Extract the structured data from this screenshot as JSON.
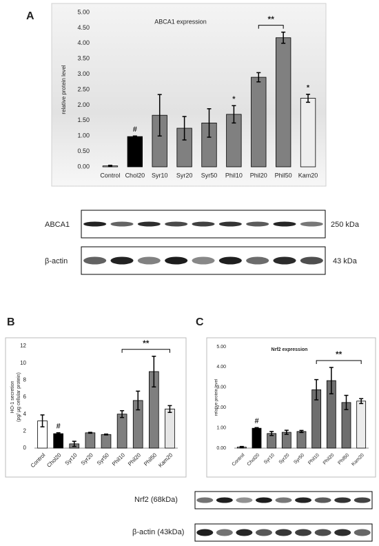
{
  "figure": {
    "panels": [
      "A",
      "B",
      "C"
    ],
    "blots_a": [
      {
        "label": "ABCA1",
        "size": "250 kDa"
      },
      {
        "label": "β-actin",
        "size": "43 kDa"
      }
    ],
    "blots_c": [
      {
        "label": "Nrf2 (68kDa)"
      },
      {
        "label": "β-actin (43kDa)"
      }
    ]
  },
  "chart_data": [
    {
      "type": "bar",
      "title": "ABCA1 expression",
      "y_label": [
        "relative protein level"
      ],
      "categories": [
        "Control",
        "Chol20",
        "Syr10",
        "Syr20",
        "Syr50",
        "Phil10",
        "Phil20",
        "Phil50",
        "Kam20"
      ],
      "values": [
        0.03,
        0.98,
        1.67,
        1.25,
        1.42,
        1.7,
        2.9,
        4.18,
        2.22
      ],
      "errors": [
        0.02,
        0.02,
        0.67,
        0.38,
        0.46,
        0.28,
        0.15,
        0.18,
        0.13
      ],
      "colors": [
        "#d9d9d9",
        "#000000",
        "#808080",
        "#808080",
        "#808080",
        "#808080",
        "#808080",
        "#808080",
        "#eeeeee"
      ],
      "ylim": [
        0,
        5
      ],
      "yticks": [
        {
          "value": 0,
          "label": "0.00"
        },
        {
          "value": 0.5,
          "label": "0.50"
        },
        {
          "value": 1,
          "label": "1.00"
        },
        {
          "value": 1.5,
          "label": "1.50"
        },
        {
          "value": 2,
          "label": "2.00"
        },
        {
          "value": 2.5,
          "label": "2.50"
        },
        {
          "value": 3,
          "label": "3.00"
        },
        {
          "value": 3.5,
          "label": "3.50"
        },
        {
          "value": 4,
          "label": "4.00"
        },
        {
          "value": 4.5,
          "label": "4.50"
        },
        {
          "value": 5,
          "label": "5.00"
        }
      ],
      "grid": false,
      "annotations": [
        {
          "text": "#",
          "category": "Chol20"
        },
        {
          "text": "*",
          "category": "Phil10"
        },
        {
          "text": "*",
          "category": "Kam20"
        }
      ],
      "brackets": [
        {
          "text": "**",
          "from": "Phil20",
          "to": "Phil50"
        }
      ]
    },
    {
      "type": "bar",
      "y_label": [
        "HO-1 secretion",
        "(pg/ µg cellular protein)"
      ],
      "categories": [
        "Control",
        "Chol20",
        "Syr10",
        "Syr20",
        "Syr50",
        "Phil10",
        "Phil20",
        "Phil50",
        "Kam20"
      ],
      "values": [
        3.2,
        1.7,
        0.5,
        1.8,
        1.6,
        4.0,
        5.6,
        9.0,
        4.6
      ],
      "errors": [
        0.7,
        0.1,
        0.3,
        0.05,
        0.05,
        0.4,
        1.1,
        1.8,
        0.4
      ],
      "colors": [
        "#ffffff",
        "#000000",
        "#7f7f7f",
        "#7f7f7f",
        "#7f7f7f",
        "#7f7f7f",
        "#7f7f7f",
        "#7f7f7f",
        "#e6e6e6"
      ],
      "ylim": [
        0,
        12
      ],
      "yticks": [
        0,
        2,
        4,
        6,
        8,
        10,
        12
      ],
      "grid": false,
      "annotations": [
        {
          "text": "#",
          "category": "Chol20"
        }
      ],
      "brackets": [
        {
          "text": "**",
          "from": "Phil10",
          "to": "Kam20"
        }
      ]
    },
    {
      "type": "bar",
      "title": "Nrf2 expression",
      "y_label": [
        "relative protein level"
      ],
      "categories": [
        "Control",
        "Chol20",
        "Syr10",
        "Syr20",
        "Syr50",
        "Phil10",
        "Phil20",
        "Phil50",
        "Kam20"
      ],
      "values": [
        0.05,
        0.98,
        0.72,
        0.78,
        0.82,
        2.88,
        3.33,
        2.25,
        2.32
      ],
      "errors": [
        0.03,
        0.03,
        0.1,
        0.1,
        0.05,
        0.5,
        0.65,
        0.35,
        0.12
      ],
      "colors": [
        "#d0d0d0",
        "#000000",
        "#777777",
        "#777777",
        "#777777",
        "#6e6e6e",
        "#6e6e6e",
        "#6e6e6e",
        "#ececec"
      ],
      "ylim": [
        0,
        5
      ],
      "yticks": [
        {
          "value": 0,
          "label": "0.00"
        },
        {
          "value": 1,
          "label": "1.00"
        },
        {
          "value": 2,
          "label": "2.00"
        },
        {
          "value": 3,
          "label": "3.00"
        },
        {
          "value": 4,
          "label": "4.00"
        },
        {
          "value": 5,
          "label": "5.00"
        }
      ],
      "grid": false,
      "annotations": [
        {
          "text": "#",
          "category": "Chol20"
        }
      ],
      "brackets": [
        {
          "text": "**",
          "from": "Phil10",
          "to": "Kam20"
        }
      ]
    }
  ]
}
